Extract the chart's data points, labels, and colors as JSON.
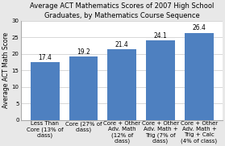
{
  "title": "Average ACT Mathematics Scores of 2007 High School\nGraduates, by Mathematics Course Sequence",
  "ylabel": "Average ACT Math Score",
  "categories": [
    "Less Than\nCore (13% of\nclass)",
    "Core (27% of\nclass)",
    "Core + Other\nAdv. Math\n(12% of\nclass)",
    "Core + Other\nAdv. Math +\nTrig (7% of\nclass)",
    "Core + Other\nAdv. Math +\nTrig + Calc\n(4% of class)"
  ],
  "values": [
    17.4,
    19.2,
    21.4,
    24.1,
    26.4
  ],
  "bar_color": "#4E80C0",
  "ylim": [
    0,
    30
  ],
  "yticks": [
    0,
    5,
    10,
    15,
    20,
    25,
    30
  ],
  "title_fontsize": 6.0,
  "ylabel_fontsize": 5.5,
  "tick_fontsize": 5.0,
  "bar_label_fontsize": 5.5,
  "background_color": "#E8E8E8",
  "plot_bg_color": "#FFFFFF",
  "grid_color": "#C8C8C8"
}
